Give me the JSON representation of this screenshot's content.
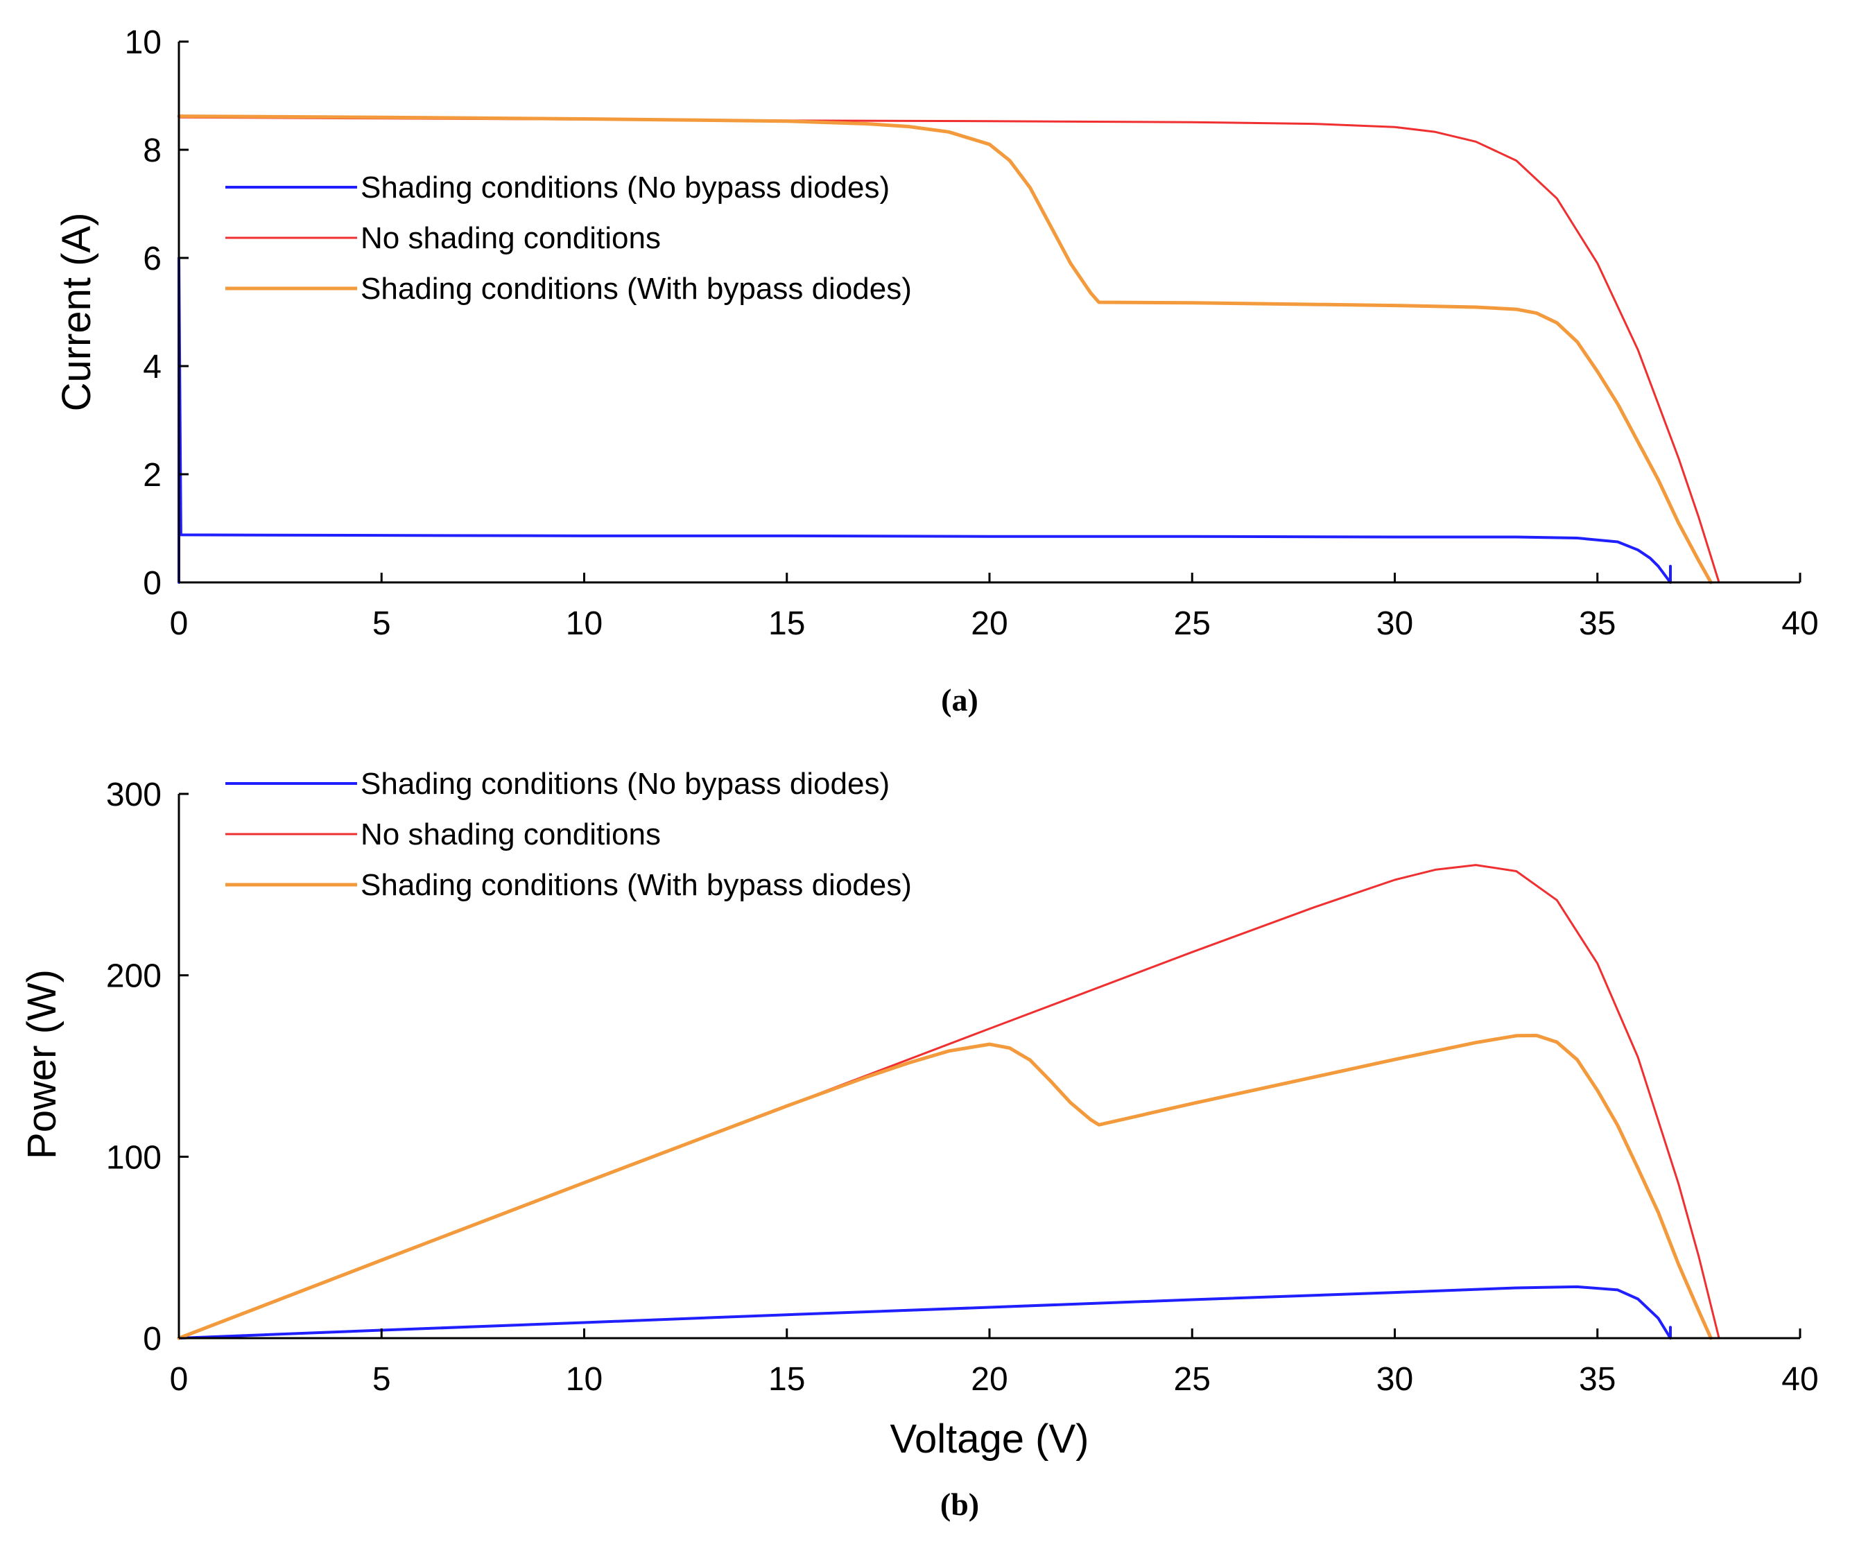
{
  "chart_data": [
    {
      "panel": "(a)",
      "type": "line",
      "title": "",
      "caption": "(a)",
      "xlabel": "",
      "ylabel": "Current (A)",
      "xlim": [
        0,
        40
      ],
      "ylim": [
        0,
        10
      ],
      "xticks": [
        0,
        5,
        10,
        15,
        20,
        25,
        30,
        35,
        40
      ],
      "yticks": [
        0,
        2,
        4,
        6,
        8,
        10
      ],
      "grid": false,
      "legend_position": "top-left",
      "series": [
        {
          "name": "Shading conditions (No bypass diodes)",
          "color": "#1f1fff",
          "x": [
            0,
            0,
            0.05,
            5,
            10,
            15,
            20,
            25,
            30,
            33,
            34.5,
            35.5,
            36.0,
            36.3,
            36.5,
            36.7,
            36.8,
            36.8
          ],
          "y": [
            0,
            6.0,
            0.88,
            0.87,
            0.86,
            0.86,
            0.85,
            0.85,
            0.84,
            0.84,
            0.82,
            0.75,
            0.6,
            0.45,
            0.3,
            0.1,
            0.0,
            0.3
          ]
        },
        {
          "name": "No shading conditions",
          "color": "#f03030",
          "x": [
            0,
            5,
            10,
            15,
            20,
            25,
            28,
            30,
            31,
            32,
            33,
            34,
            35,
            36,
            37,
            37.5,
            38.0
          ],
          "y": [
            8.6,
            8.58,
            8.56,
            8.54,
            8.53,
            8.51,
            8.48,
            8.42,
            8.33,
            8.15,
            7.8,
            7.1,
            5.9,
            4.3,
            2.3,
            1.2,
            0.0
          ]
        },
        {
          "name": "Shading conditions (With bypass diodes)",
          "color": "#f39a3d",
          "x": [
            0,
            5,
            10,
            15,
            17,
            18,
            19,
            20,
            20.5,
            21,
            21.5,
            22,
            22.5,
            22.7,
            25,
            30,
            32,
            33,
            33.5,
            34,
            34.5,
            35,
            35.5,
            36,
            36.5,
            37,
            37.5,
            37.8
          ],
          "y": [
            8.62,
            8.6,
            8.57,
            8.53,
            8.48,
            8.43,
            8.33,
            8.1,
            7.8,
            7.3,
            6.6,
            5.9,
            5.35,
            5.18,
            5.17,
            5.12,
            5.09,
            5.05,
            4.98,
            4.8,
            4.45,
            3.9,
            3.3,
            2.6,
            1.9,
            1.1,
            0.4,
            0.0
          ]
        }
      ]
    },
    {
      "panel": "(b)",
      "type": "line",
      "title": "",
      "caption": "(b)",
      "xlabel": "Voltage (V)",
      "ylabel": "Power (W)",
      "xlim": [
        0,
        40
      ],
      "ylim": [
        0,
        300
      ],
      "xticks": [
        0,
        5,
        10,
        15,
        20,
        25,
        30,
        35,
        40
      ],
      "yticks": [
        0,
        100,
        200,
        300
      ],
      "grid": false,
      "legend_position": "top-left",
      "series": [
        {
          "name": "Shading conditions (No bypass diodes)",
          "color": "#1f1fff",
          "x": [
            0,
            5,
            10,
            15,
            20,
            25,
            30,
            33,
            34.5,
            35.5,
            36.0,
            36.5,
            36.8,
            36.8
          ],
          "y": [
            0,
            4.4,
            8.6,
            12.9,
            17.0,
            21.2,
            25.2,
            27.7,
            28.3,
            26.6,
            21.6,
            11.0,
            0.0,
            6.0
          ]
        },
        {
          "name": "No shading conditions",
          "color": "#f03030",
          "x": [
            0,
            5,
            10,
            15,
            20,
            25,
            28,
            30,
            31,
            32,
            33,
            34,
            35,
            36,
            37,
            37.5,
            38.0
          ],
          "y": [
            0,
            42.9,
            85.6,
            128.1,
            170.6,
            212.8,
            237.4,
            252.6,
            258.2,
            260.8,
            257.4,
            241.4,
            206.5,
            154.8,
            85.1,
            45.0,
            0.0
          ]
        },
        {
          "name": "Shading conditions (With bypass diodes)",
          "color": "#f39a3d",
          "x": [
            0,
            5,
            10,
            15,
            17,
            18,
            19,
            20,
            20.5,
            21,
            21.5,
            22,
            22.5,
            22.7,
            25,
            30,
            32,
            33,
            33.5,
            34,
            34.5,
            35,
            35.5,
            36,
            36.5,
            37,
            37.5,
            37.8
          ],
          "y": [
            0,
            43.0,
            85.7,
            128.0,
            144.2,
            151.7,
            158.3,
            162.0,
            159.9,
            153.3,
            141.9,
            129.8,
            120.4,
            117.6,
            129.3,
            153.6,
            162.9,
            166.7,
            166.8,
            163.2,
            153.5,
            136.5,
            117.2,
            93.6,
            69.4,
            40.7,
            15.0,
            0.0
          ]
        }
      ]
    }
  ]
}
